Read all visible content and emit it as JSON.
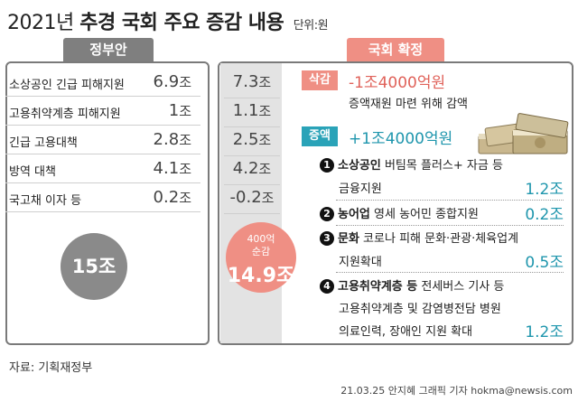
{
  "title": {
    "prefix": "2021년",
    "main": "추경 국회 주요 증감 내용",
    "unit": "단위:원"
  },
  "left": {
    "header": "정부안",
    "rows": [
      {
        "label": "소상공인 긴급 피해지원",
        "num": "6.9",
        "unit": "조"
      },
      {
        "label": "고용취약계층 피해지원",
        "num": "1",
        "unit": "조"
      },
      {
        "label": "긴급 고용대책",
        "num": "2.8",
        "unit": "조"
      },
      {
        "label": "방역 대책",
        "num": "4.1",
        "unit": "조"
      },
      {
        "label": "국고채 이자 등",
        "num": "0.2",
        "unit": "조"
      }
    ],
    "total": "15조"
  },
  "right": {
    "header": "국회 확정",
    "values": [
      {
        "num": "7.3",
        "unit": "조"
      },
      {
        "num": "1.1",
        "unit": "조"
      },
      {
        "num": "2.5",
        "unit": "조"
      },
      {
        "num": "4.2",
        "unit": "조"
      },
      {
        "num": "-0.2",
        "unit": "조"
      }
    ],
    "net_line1": "400억",
    "net_line2": "순감",
    "net_total": "14.9조",
    "cut_badge": "삭감",
    "cut_amount": "-1조4000억원",
    "cut_desc": "증액재원 마련 위해 감액",
    "inc_badge": "증액",
    "inc_amount": "+1조4000억원",
    "items": [
      {
        "no": "1",
        "head": "소상공인",
        "rest": " 버팀목 플러스+ 자금 등",
        "sub": [
          "금융지원"
        ],
        "amount": "1.2조"
      },
      {
        "no": "2",
        "head": "농어업",
        "rest": " 영세 농어민 종합지원",
        "sub": [],
        "amount": "0.2조"
      },
      {
        "no": "3",
        "head": "문화",
        "rest": " 코로나 피해 문화·관광·체육업계",
        "sub": [
          "지원확대"
        ],
        "amount": "0.5조"
      },
      {
        "no": "4",
        "head": "고용취약계층 등",
        "rest": " 전세버스 기사 등",
        "sub": [
          "고용취약계층 및 감염병전담 병원",
          "의료인력, 장애인 지원 확대"
        ],
        "amount": "1.2조"
      }
    ]
  },
  "source": "자료: 기획재정부",
  "credit": "21.03.25 안지혜 그래픽 기자 hokma@newsis.com",
  "colors": {
    "accent_red": "#ef8f84",
    "accent_teal": "#2aa3b8",
    "panel_gray": "#7f7f7f"
  }
}
